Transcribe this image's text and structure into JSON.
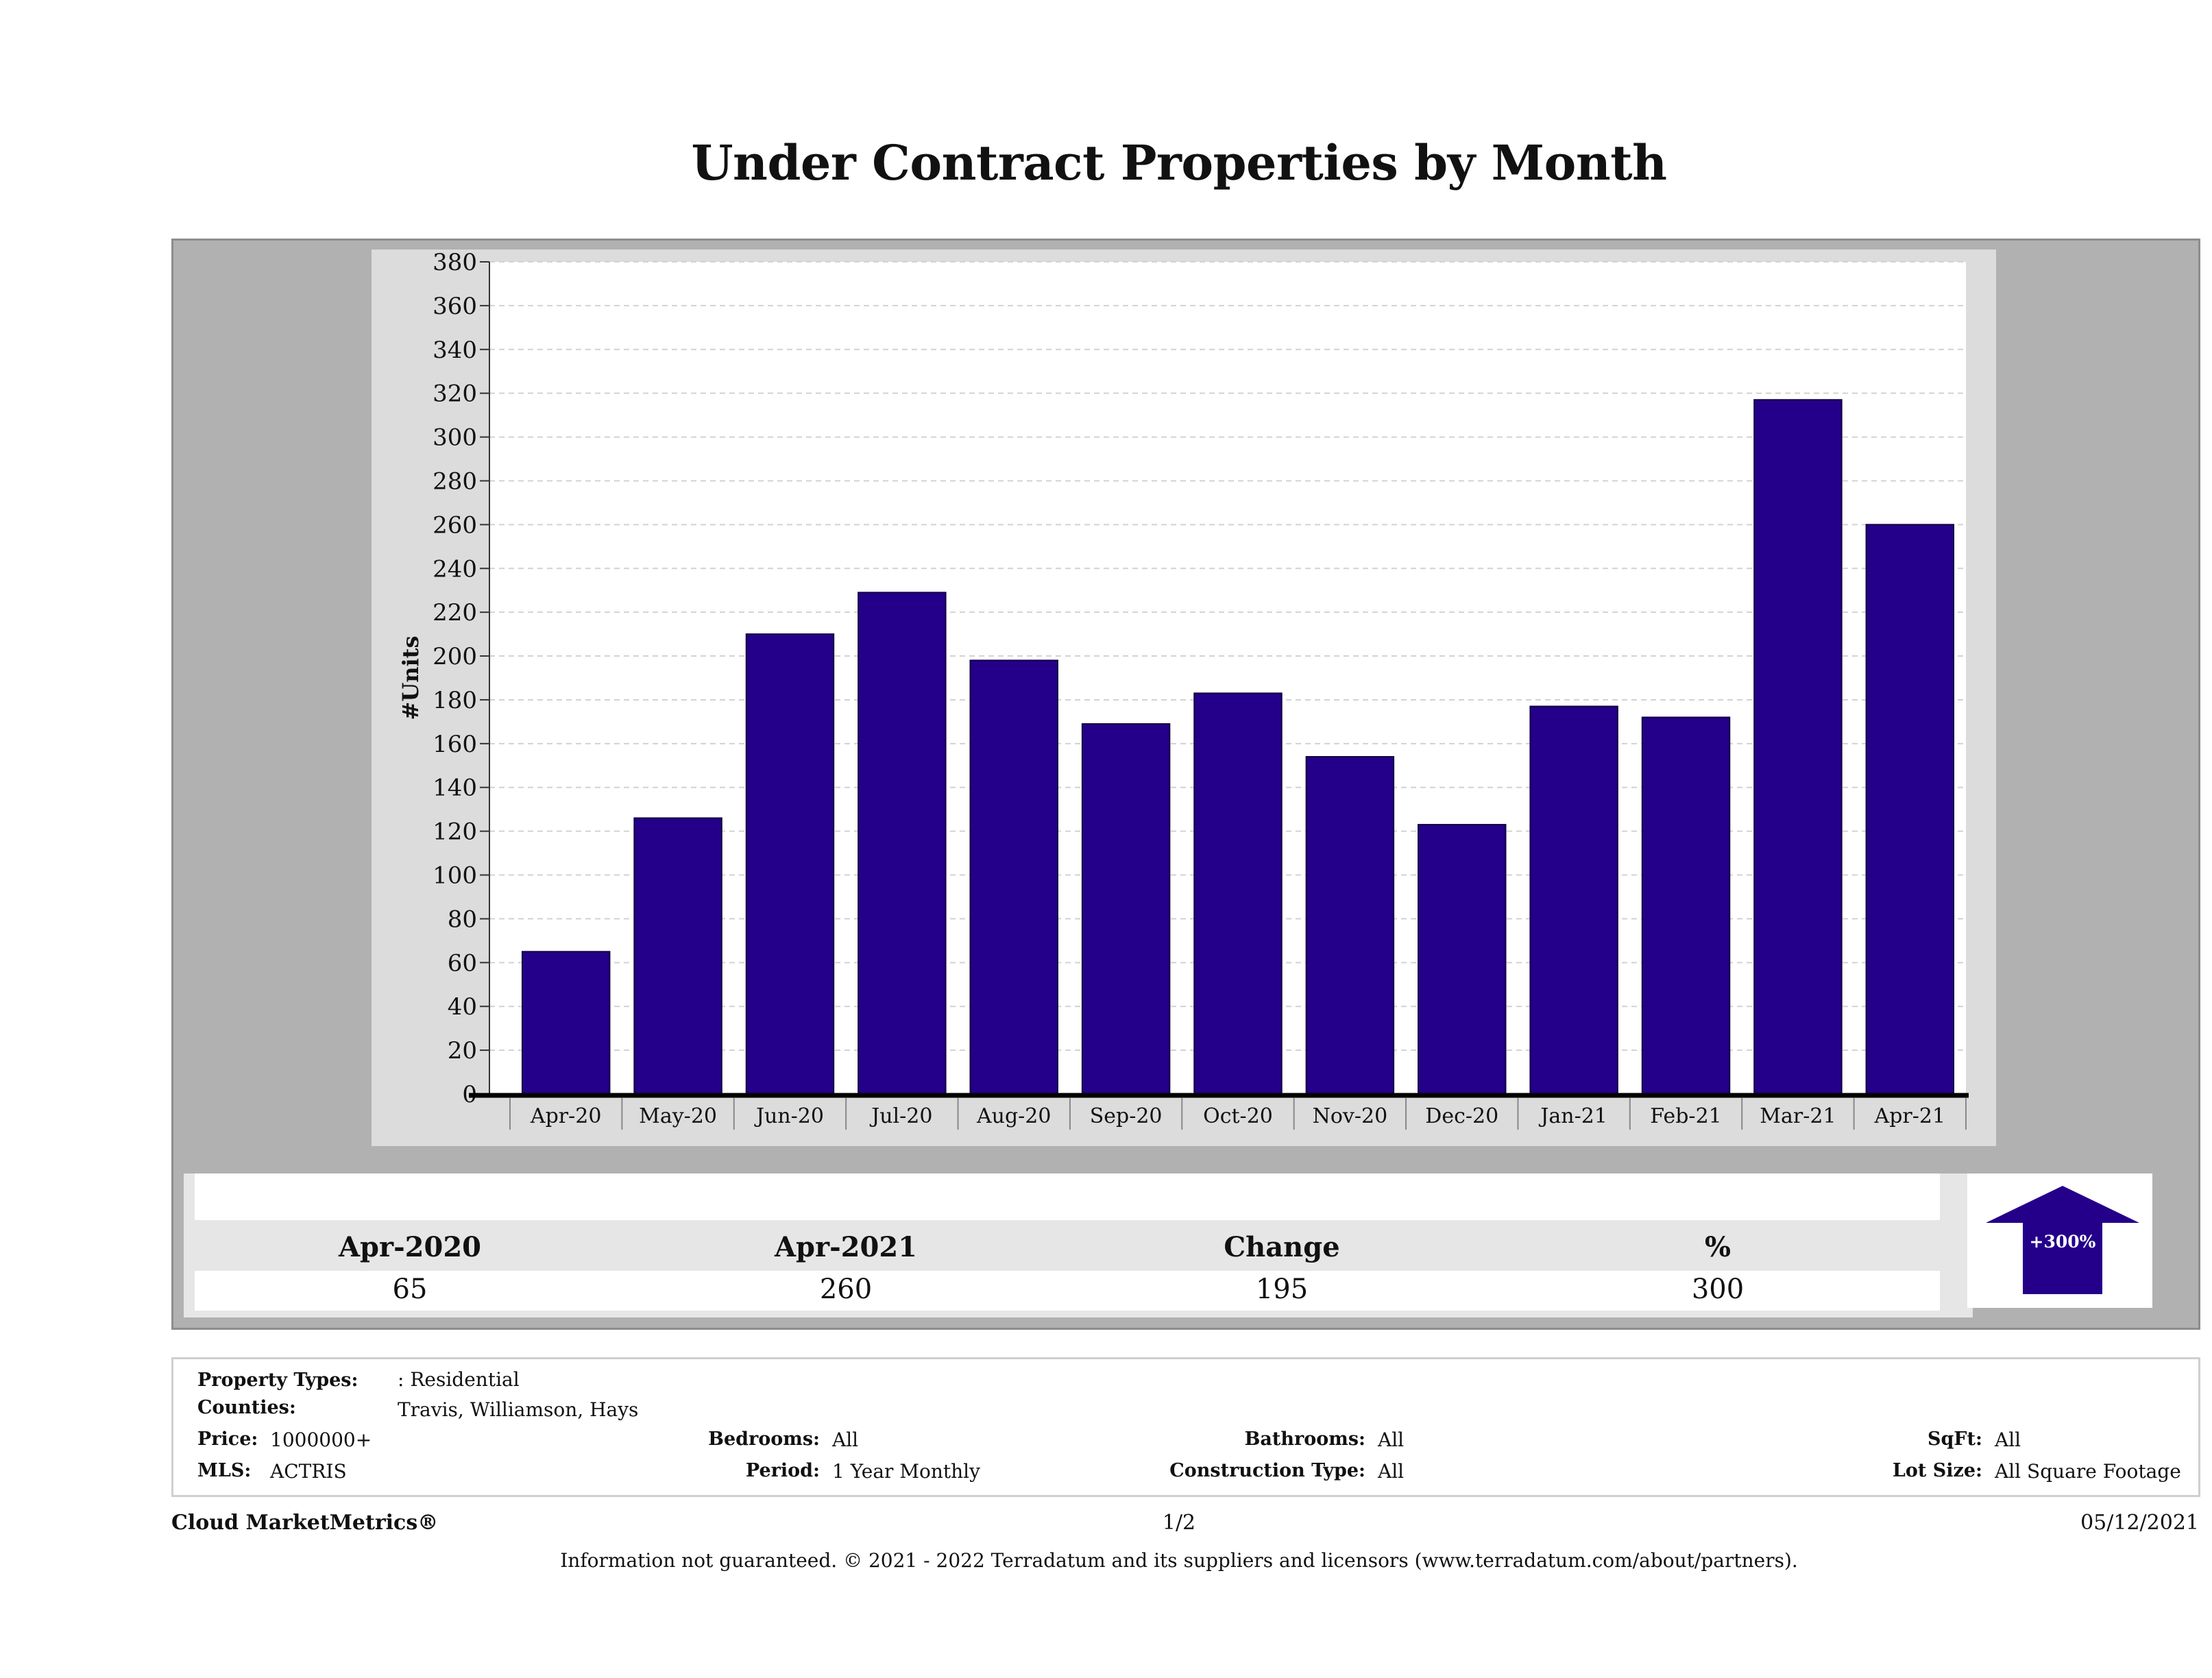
{
  "title": "Under Contract Properties by Month",
  "chart_data": {
    "type": "bar",
    "title": "Under Contract Properties by Month",
    "ylabel": "#Units",
    "xlabel": "",
    "categories": [
      "Apr-20",
      "May-20",
      "Jun-20",
      "Jul-20",
      "Aug-20",
      "Sep-20",
      "Oct-20",
      "Nov-20",
      "Dec-20",
      "Jan-21",
      "Feb-21",
      "Mar-21",
      "Apr-21"
    ],
    "values": [
      65,
      126,
      210,
      229,
      198,
      169,
      183,
      154,
      123,
      177,
      172,
      317,
      260
    ],
    "ylim": [
      0,
      380
    ],
    "yticks": [
      0,
      20,
      40,
      60,
      80,
      100,
      120,
      140,
      160,
      180,
      200,
      220,
      240,
      260,
      280,
      300,
      320,
      340,
      360,
      380
    ],
    "bar_color": "#24008a",
    "grid": true
  },
  "stats": {
    "headers": [
      "Apr-2020",
      "Apr-2021",
      "Change",
      "%"
    ],
    "values": [
      "65",
      "260",
      "195",
      "300"
    ]
  },
  "indicator": {
    "label": "+300%",
    "direction": "up",
    "color": "#24008a"
  },
  "info": {
    "property_types_label": "Property Types:",
    "property_types_value": ": Residential",
    "counties_label": "Counties:",
    "counties_value": "Travis, Williamson, Hays",
    "price_label": "Price:",
    "price_value": "1000000+",
    "mls_label": "MLS:",
    "mls_value": "ACTRIS",
    "bedrooms_label": "Bedrooms:",
    "bedrooms_value": "All",
    "period_label": "Period:",
    "period_value": "1 Year Monthly",
    "bathrooms_label": "Bathrooms:",
    "bathrooms_value": "All",
    "construction_label": "Construction Type:",
    "construction_value": "All",
    "sqft_label": "SqFt:",
    "sqft_value": "All",
    "lot_label": "Lot Size:",
    "lot_value": "All Square Footage"
  },
  "footer": {
    "brand": "Cloud MarketMetrics®",
    "page": "1/2",
    "date": "05/12/2021",
    "disclaimer": "Information not guaranteed. © 2021 - 2022 Terradatum and its suppliers and licensors (www.terradatum.com/about/partners)."
  }
}
